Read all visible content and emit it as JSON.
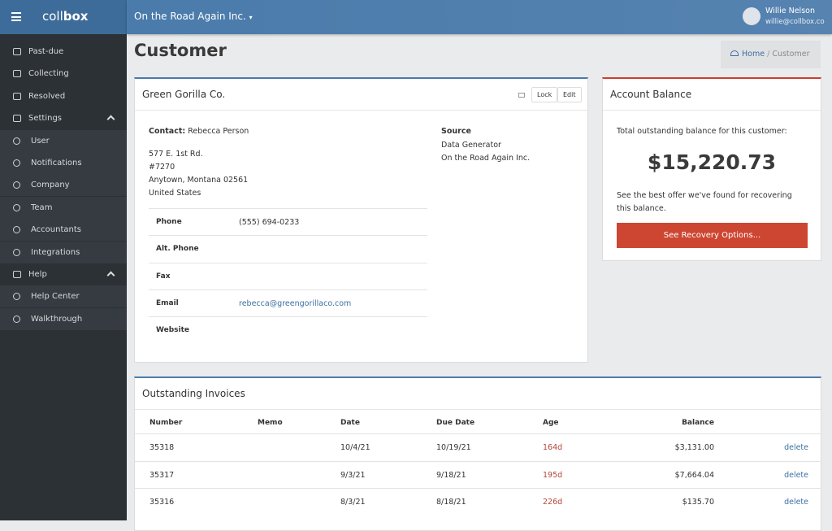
{
  "header": {
    "brand_light": "coll",
    "brand_bold": "box",
    "company": "On the Road Again Inc.",
    "user_name": "Willie Nelson",
    "user_email": "willie@collbox.co"
  },
  "sidebar": [
    {
      "label": "Past-due"
    },
    {
      "label": "Collecting"
    },
    {
      "label": "Resolved"
    },
    {
      "label": "Settings",
      "children": [
        {
          "label": "User"
        },
        {
          "label": "Notifications"
        },
        {
          "label": "Company"
        },
        {
          "label": "Team"
        },
        {
          "label": "Accountants"
        },
        {
          "label": "Integrations"
        }
      ]
    },
    {
      "label": "Help",
      "children": [
        {
          "label": "Help Center"
        },
        {
          "label": "Walkthrough"
        }
      ]
    }
  ],
  "page": {
    "title": "Customer",
    "breadcrumb": [
      "Home",
      "Customer"
    ]
  },
  "customer": {
    "name": "Green Gorilla Co.",
    "buttons": [
      "Lock",
      "Edit"
    ],
    "contact_label": "Contact:",
    "contact_name": "Rebecca Person",
    "address": [
      "577 E. 1st Rd.",
      "#7270",
      "Anytown, Montana 02561",
      "United States"
    ],
    "source_label": "Source",
    "source": [
      "Data Generator",
      "On the Road Again Inc."
    ],
    "info": [
      {
        "label": "Phone",
        "value": "(555) 694-0233"
      },
      {
        "label": "Alt. Phone"
      },
      {
        "label": "Fax"
      },
      {
        "label": "Email",
        "value": "rebecca@greengorillaco.com"
      },
      {
        "label": "Website"
      }
    ]
  },
  "balance": {
    "title": "Account Balance",
    "intro": "Total outstanding balance for this customer:",
    "amount": "$15,220.73",
    "note": "See the best offer we've found for recovering this balance.",
    "button": "See Recovery Options..."
  },
  "invoices": {
    "title": "Outstanding Invoices",
    "columns": [
      "Number",
      "Memo",
      "Date",
      "Due Date",
      "Age",
      "Balance"
    ],
    "rows": [
      {
        "number": "35318",
        "date": "10/4/21",
        "due": "10/19/21",
        "age": "164d",
        "balance": "$3,131.00",
        "action": "delete"
      },
      {
        "number": "35317",
        "date": "9/3/21",
        "due": "9/18/21",
        "age": "195d",
        "balance": "$7,664.04",
        "action": "delete"
      },
      {
        "number": "35316",
        "date": "8/3/21",
        "due": "8/18/21",
        "age": "226d",
        "balance": "$135.70",
        "action": "delete"
      }
    ]
  }
}
